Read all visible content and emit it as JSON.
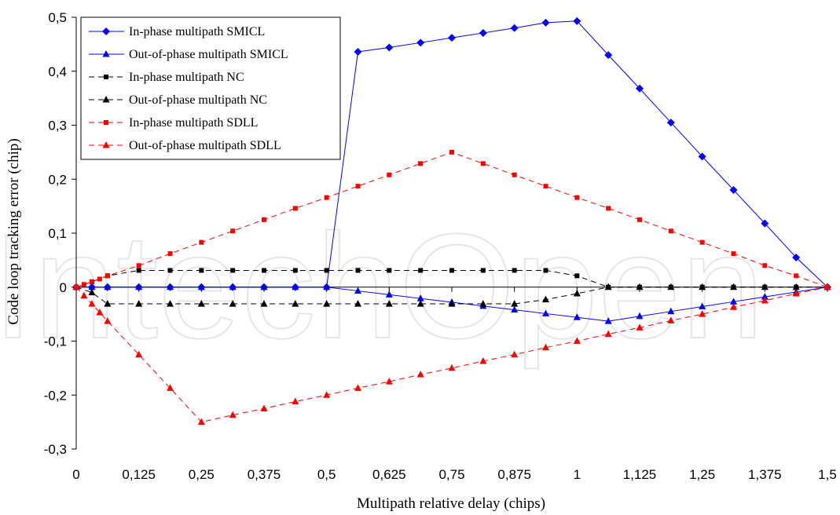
{
  "chart_data": {
    "type": "line",
    "xlabel": "Multipath relative delay (chips)",
    "ylabel": "Code loop tracking error (chip)",
    "xlim": [
      0,
      1.5
    ],
    "ylim": [
      -0.3,
      0.5
    ],
    "x_ticks": [
      "0",
      "0,125",
      "0,25",
      "0,375",
      "0,5",
      "0,625",
      "0,75",
      "0,875",
      "1",
      "1,125",
      "1,25",
      "1,375",
      "1,5"
    ],
    "y_ticks": [
      "0,5",
      "0,4",
      "0,3",
      "0,2",
      "0,1",
      "0",
      "-0,1",
      "-0,2",
      "-0,3"
    ],
    "grid": false,
    "legend_position": "top-left",
    "watermark": "IntechOpen",
    "series": [
      {
        "name": "In-phase multipath SMICL",
        "color": "#0000ff",
        "marker": "diamond",
        "dash": "solid",
        "points": [
          [
            0,
            0
          ],
          [
            0.03125,
            0
          ],
          [
            0.0625,
            0
          ],
          [
            0.125,
            0
          ],
          [
            0.1875,
            0
          ],
          [
            0.25,
            0
          ],
          [
            0.3125,
            0
          ],
          [
            0.375,
            0
          ],
          [
            0.4375,
            0
          ],
          [
            0.5,
            0
          ],
          [
            0.5625,
            0.436
          ],
          [
            0.625,
            0.444
          ],
          [
            0.6875,
            0.453
          ],
          [
            0.75,
            0.462
          ],
          [
            0.8125,
            0.471
          ],
          [
            0.875,
            0.48
          ],
          [
            0.9375,
            0.49
          ],
          [
            1.0,
            0.493
          ],
          [
            1.0625,
            0.43
          ],
          [
            1.125,
            0.368
          ],
          [
            1.1875,
            0.305
          ],
          [
            1.25,
            0.242
          ],
          [
            1.3125,
            0.18
          ],
          [
            1.375,
            0.118
          ],
          [
            1.4375,
            0.055
          ],
          [
            1.5,
            0
          ]
        ]
      },
      {
        "name": "Out-of-phase multipath SMICL",
        "color": "#0000ff",
        "marker": "triangle",
        "dash": "solid",
        "points": [
          [
            0,
            0
          ],
          [
            0.03125,
            0
          ],
          [
            0.0625,
            0
          ],
          [
            0.125,
            0
          ],
          [
            0.1875,
            0
          ],
          [
            0.25,
            0
          ],
          [
            0.3125,
            0
          ],
          [
            0.375,
            0
          ],
          [
            0.4375,
            0
          ],
          [
            0.5,
            0
          ],
          [
            0.5625,
            -0.007
          ],
          [
            0.625,
            -0.014
          ],
          [
            0.6875,
            -0.021
          ],
          [
            0.75,
            -0.028
          ],
          [
            0.8125,
            -0.035
          ],
          [
            0.875,
            -0.042
          ],
          [
            0.9375,
            -0.049
          ],
          [
            1.0,
            -0.056
          ],
          [
            1.0625,
            -0.063
          ],
          [
            1.125,
            -0.054
          ],
          [
            1.1875,
            -0.045
          ],
          [
            1.25,
            -0.036
          ],
          [
            1.3125,
            -0.027
          ],
          [
            1.375,
            -0.018
          ],
          [
            1.4375,
            -0.009
          ],
          [
            1.5,
            0
          ]
        ]
      },
      {
        "name": "In-phase multipath NC",
        "color": "#000000",
        "marker": "square",
        "dash": "dashed",
        "points": [
          [
            0,
            0
          ],
          [
            0.03125,
            0.01
          ],
          [
            0.0625,
            0.021
          ],
          [
            0.125,
            0.031
          ],
          [
            0.1875,
            0.031
          ],
          [
            0.25,
            0.031
          ],
          [
            0.3125,
            0.031
          ],
          [
            0.375,
            0.031
          ],
          [
            0.4375,
            0.031
          ],
          [
            0.5,
            0.031
          ],
          [
            0.5625,
            0.031
          ],
          [
            0.625,
            0.031
          ],
          [
            0.6875,
            0.031
          ],
          [
            0.75,
            0.031
          ],
          [
            0.8125,
            0.031
          ],
          [
            0.875,
            0.031
          ],
          [
            0.9375,
            0.031
          ],
          [
            1.0,
            0.021
          ],
          [
            1.0625,
            0
          ],
          [
            1.125,
            0
          ],
          [
            1.1875,
            0
          ],
          [
            1.25,
            0
          ],
          [
            1.3125,
            0
          ],
          [
            1.375,
            0
          ],
          [
            1.4375,
            0
          ],
          [
            1.5,
            0
          ]
        ]
      },
      {
        "name": "Out-of-phase multipath NC",
        "color": "#000000",
        "marker": "triangle",
        "dash": "dashed",
        "points": [
          [
            0,
            0
          ],
          [
            0.03125,
            -0.01
          ],
          [
            0.0625,
            -0.031
          ],
          [
            0.125,
            -0.031
          ],
          [
            0.1875,
            -0.031
          ],
          [
            0.25,
            -0.031
          ],
          [
            0.3125,
            -0.031
          ],
          [
            0.375,
            -0.031
          ],
          [
            0.4375,
            -0.031
          ],
          [
            0.5,
            -0.031
          ],
          [
            0.5625,
            -0.031
          ],
          [
            0.625,
            -0.031
          ],
          [
            0.6875,
            -0.031
          ],
          [
            0.75,
            -0.031
          ],
          [
            0.8125,
            -0.031
          ],
          [
            0.875,
            -0.031
          ],
          [
            0.9375,
            -0.023
          ],
          [
            1.0,
            -0.012
          ],
          [
            1.0625,
            0
          ],
          [
            1.125,
            0
          ],
          [
            1.1875,
            0
          ],
          [
            1.25,
            0
          ],
          [
            1.3125,
            0
          ],
          [
            1.375,
            0
          ],
          [
            1.4375,
            0
          ],
          [
            1.5,
            0
          ]
        ]
      },
      {
        "name": "In-phase multipath SDLL",
        "color": "#ff0000",
        "marker": "square",
        "dash": "dashed",
        "points": [
          [
            0,
            0
          ],
          [
            0.015625,
            0.005
          ],
          [
            0.03125,
            0.01
          ],
          [
            0.046875,
            0.015
          ],
          [
            0.0625,
            0.021
          ],
          [
            0.125,
            0.04
          ],
          [
            0.1875,
            0.062
          ],
          [
            0.25,
            0.083
          ],
          [
            0.3125,
            0.104
          ],
          [
            0.375,
            0.125
          ],
          [
            0.4375,
            0.146
          ],
          [
            0.5,
            0.166
          ],
          [
            0.5625,
            0.187
          ],
          [
            0.625,
            0.208
          ],
          [
            0.6875,
            0.229
          ],
          [
            0.75,
            0.25
          ],
          [
            0.8125,
            0.229
          ],
          [
            0.875,
            0.208
          ],
          [
            0.9375,
            0.187
          ],
          [
            1.0,
            0.166
          ],
          [
            1.0625,
            0.146
          ],
          [
            1.125,
            0.125
          ],
          [
            1.1875,
            0.104
          ],
          [
            1.25,
            0.083
          ],
          [
            1.3125,
            0.062
          ],
          [
            1.375,
            0.04
          ],
          [
            1.4375,
            0.021
          ],
          [
            1.5,
            0
          ]
        ]
      },
      {
        "name": "Out-of-phase multipath SDLL",
        "color": "#ff0000",
        "marker": "triangle",
        "dash": "dashed",
        "points": [
          [
            0,
            0
          ],
          [
            0.015625,
            -0.016
          ],
          [
            0.03125,
            -0.031
          ],
          [
            0.046875,
            -0.047
          ],
          [
            0.0625,
            -0.063
          ],
          [
            0.125,
            -0.125
          ],
          [
            0.1875,
            -0.187
          ],
          [
            0.25,
            -0.25
          ],
          [
            0.3125,
            -0.237
          ],
          [
            0.375,
            -0.225
          ],
          [
            0.4375,
            -0.212
          ],
          [
            0.5,
            -0.2
          ],
          [
            0.5625,
            -0.187
          ],
          [
            0.625,
            -0.175
          ],
          [
            0.6875,
            -0.162
          ],
          [
            0.75,
            -0.15
          ],
          [
            0.8125,
            -0.137
          ],
          [
            0.875,
            -0.125
          ],
          [
            0.9375,
            -0.112
          ],
          [
            1.0,
            -0.1
          ],
          [
            1.0625,
            -0.087
          ],
          [
            1.125,
            -0.075
          ],
          [
            1.1875,
            -0.062
          ],
          [
            1.25,
            -0.05
          ],
          [
            1.3125,
            -0.037
          ],
          [
            1.375,
            -0.025
          ],
          [
            1.4375,
            -0.012
          ],
          [
            1.5,
            0
          ]
        ]
      }
    ]
  }
}
